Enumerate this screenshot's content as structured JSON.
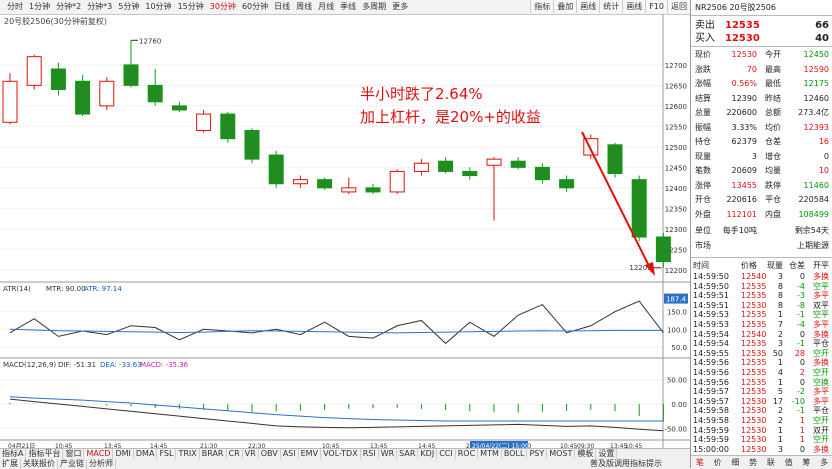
{
  "toolbar": {
    "periods": [
      "分时",
      "1分钟",
      "分钟*2",
      "分钟*3",
      "5分钟",
      "10分钟",
      "15分钟",
      "30分钟",
      "60分钟",
      "日线",
      "周线",
      "月线",
      "季线",
      "多周期",
      "更多"
    ],
    "active_period": 7,
    "tools": [
      "指标",
      "叠加",
      "画线",
      "统计",
      "画线",
      "F10",
      "返回"
    ]
  },
  "contract_title": "20号胶2506(30分钟前复权)",
  "annotation": {
    "line1": "半小时跌了2.64%",
    "line2": "加上杠杆，是20%+的收益"
  },
  "price_labels": {
    "high": "12760",
    "low": "12205"
  },
  "price_axis": [
    "12700",
    "12650",
    "12600",
    "12550",
    "12500",
    "12450",
    "12400",
    "12350",
    "12300",
    "12250",
    "12200"
  ],
  "atr": {
    "label_name": "ATR(14)",
    "mtr": "MTR: 90.00",
    "atr": "ATR: 97.14",
    "axis": [
      "150.0",
      "100.0",
      "50.0"
    ],
    "current": "187.4"
  },
  "macd": {
    "label_name": "MACD(12,26,9)",
    "dif": "DIF: -51.31",
    "dea": "DEA: -33.63",
    "macd": "MACD: -35.36",
    "axis": [
      "50.00",
      "0.00",
      "-50.00"
    ]
  },
  "time_axis": [
    "04月21日",
    "10:45",
    "13:45",
    "14:45",
    "21:30",
    "22:30",
    "10:45",
    "13:45",
    "14:45",
    "21:30",
    "22:30",
    "10:45",
    "13:45",
    "25/04/22(二) 15:00",
    "09:30",
    "10:45"
  ],
  "indicator_tabs": [
    "指标A",
    "指标平台",
    "窗口",
    "MACD",
    "DMI",
    "DMA",
    "FSL",
    "TRIX",
    "BRAR",
    "CR",
    "VR",
    "OBV",
    "ASI",
    "EMV",
    "VOL-TDX",
    "RSI",
    "WR",
    "SAR",
    "KDJ",
    "CCI",
    "ROC",
    "MTM",
    "BOLL",
    "PSY",
    "MOST",
    "模板",
    "设置"
  ],
  "indicator_tabs2": [
    "扩展",
    "关联报价",
    "产业链",
    "分析师"
  ],
  "right": {
    "symbol": "NR2506 20号胶2506",
    "sell_label": "卖出",
    "sell_price": "12535",
    "sell_vol": "66",
    "buy_label": "买入",
    "buy_price": "12530",
    "buy_vol": "40",
    "rows": [
      {
        "k1": "现价",
        "v1": "12530",
        "k2": "今开",
        "v2": "12450"
      },
      {
        "k1": "涨跌",
        "v1": "70",
        "k2": "最高",
        "v2": "12590"
      },
      {
        "k1": "涨幅",
        "v1": "0.56%",
        "k2": "最低",
        "v2": "12175"
      },
      {
        "k1": "结算",
        "v1": "12390",
        "k2": "昨结",
        "v2": "12460"
      },
      {
        "k1": "总量",
        "v1": "220600",
        "k2": "总额",
        "v2": "273.4亿"
      },
      {
        "k1": "振幅",
        "v1": "3.33%",
        "k2": "均价",
        "v2": "12393"
      },
      {
        "k1": "持仓",
        "v1": "62379",
        "k2": "仓差",
        "v2": "16"
      },
      {
        "k1": "现量",
        "v1": "3",
        "k2": "增仓",
        "v2": "0"
      },
      {
        "k1": "笔数",
        "v1": "20609",
        "k2": "均量",
        "v2": "10"
      },
      {
        "k1": "涨停",
        "v1": "13455",
        "k2": "跌停",
        "v2": "11460"
      },
      {
        "k1": "开仓",
        "v1": "220616",
        "k2": "平仓",
        "v2": "220584"
      },
      {
        "k1": "外盘",
        "v1": "112101",
        "k2": "内盘",
        "v2": "108499"
      },
      {
        "k1": "单位",
        "v1": "每手10吨",
        "k2": "",
        "v2": "剩余54天"
      },
      {
        "k1": "市场",
        "v1": "",
        "k2": "",
        "v2": "上期能源"
      }
    ],
    "tick_header": [
      "时间",
      "价格",
      "现量",
      "仓差",
      "开平"
    ],
    "ticks": [
      [
        "14:59:50",
        "12540",
        "3",
        "0",
        "多换"
      ],
      [
        "14:59:50",
        "12535",
        "8",
        "-4",
        "空平"
      ],
      [
        "14:59:51",
        "12535",
        "8",
        "-3",
        "多平"
      ],
      [
        "14:59:51",
        "12530",
        "8",
        "-8",
        "双平"
      ],
      [
        "14:59:53",
        "12535",
        "1",
        "-1",
        "空平"
      ],
      [
        "14:59:53",
        "12535",
        "7",
        "-4",
        "多平"
      ],
      [
        "14:59:54",
        "12540",
        "2",
        "0",
        "多换"
      ],
      [
        "14:59:54",
        "12535",
        "3",
        "-1",
        "平仓"
      ],
      [
        "14:59:55",
        "12535",
        "50",
        "28",
        "空开"
      ],
      [
        "14:59:56",
        "12535",
        "1",
        "0",
        "多换"
      ],
      [
        "14:59:56",
        "12535",
        "4",
        "2",
        "空开"
      ],
      [
        "14:59:56",
        "12535",
        "1",
        "0",
        "空换"
      ],
      [
        "14:59:57",
        "12535",
        "5",
        "-2",
        "多平"
      ],
      [
        "14:59:57",
        "12530",
        "17",
        "-10",
        "多平"
      ],
      [
        "14:59:58",
        "12530",
        "2",
        "-1",
        "平仓"
      ],
      [
        "14:59:58",
        "12530",
        "2",
        "1",
        "空开"
      ],
      [
        "14:59:59",
        "12530",
        "1",
        "1",
        "双开"
      ],
      [
        "14:59:59",
        "12530",
        "1",
        "1",
        "空开"
      ],
      [
        "15:00:00",
        "12530",
        "3",
        "0",
        "多换"
      ]
    ],
    "bottom_tabs": [
      "笔",
      "价",
      "细",
      "势",
      "联",
      "值",
      "筹",
      "多"
    ]
  },
  "bottom_status": "普及版调用指标提示",
  "chart_data": {
    "type": "candlestick",
    "ylim": [
      12180,
      12790
    ],
    "candles": [
      {
        "o": 12560,
        "c": 12660,
        "h": 12680,
        "l": 12555
      },
      {
        "o": 12650,
        "c": 12720,
        "h": 12725,
        "l": 12640
      },
      {
        "o": 12690,
        "c": 12640,
        "h": 12705,
        "l": 12625
      },
      {
        "o": 12660,
        "c": 12580,
        "h": 12675,
        "l": 12575
      },
      {
        "o": 12600,
        "c": 12660,
        "h": 12670,
        "l": 12590
      },
      {
        "o": 12700,
        "c": 12650,
        "h": 12760,
        "l": 12645
      },
      {
        "o": 12650,
        "c": 12610,
        "h": 12690,
        "l": 12600
      },
      {
        "o": 12600,
        "c": 12590,
        "h": 12610,
        "l": 12585
      },
      {
        "o": 12540,
        "c": 12580,
        "h": 12590,
        "l": 12535
      },
      {
        "o": 12580,
        "c": 12520,
        "h": 12585,
        "l": 12510
      },
      {
        "o": 12540,
        "c": 12470,
        "h": 12545,
        "l": 12460
      },
      {
        "o": 12480,
        "c": 12410,
        "h": 12490,
        "l": 12400
      },
      {
        "o": 12410,
        "c": 12420,
        "h": 12430,
        "l": 12400
      },
      {
        "o": 12420,
        "c": 12400,
        "h": 12425,
        "l": 12395
      },
      {
        "o": 12390,
        "c": 12400,
        "h": 12425,
        "l": 12385
      },
      {
        "o": 12400,
        "c": 12390,
        "h": 12410,
        "l": 12385
      },
      {
        "o": 12390,
        "c": 12440,
        "h": 12445,
        "l": 12385
      },
      {
        "o": 12440,
        "c": 12460,
        "h": 12470,
        "l": 12430
      },
      {
        "o": 12465,
        "c": 12440,
        "h": 12475,
        "l": 12435
      },
      {
        "o": 12440,
        "c": 12430,
        "h": 12450,
        "l": 12420
      },
      {
        "o": 12455,
        "c": 12470,
        "h": 12475,
        "l": 12320
      },
      {
        "o": 12465,
        "c": 12450,
        "h": 12475,
        "l": 12445
      },
      {
        "o": 12450,
        "c": 12420,
        "h": 12460,
        "l": 12410
      },
      {
        "o": 12420,
        "c": 12400,
        "h": 12430,
        "l": 12390
      },
      {
        "o": 12480,
        "c": 12520,
        "h": 12530,
        "l": 12470
      },
      {
        "o": 12505,
        "c": 12435,
        "h": 12510,
        "l": 12425
      },
      {
        "o": 12420,
        "c": 12280,
        "h": 12430,
        "l": 12270
      },
      {
        "o": 12280,
        "c": 12220,
        "h": 12290,
        "l": 12205
      }
    ],
    "atr_values": [
      100,
      98,
      96,
      95,
      94,
      93,
      92,
      91,
      92,
      94,
      96,
      95,
      94,
      93,
      92,
      91,
      90,
      91,
      92,
      93,
      94,
      95,
      96,
      95,
      96,
      97,
      97,
      97
    ],
    "mtr_values": [
      90,
      130,
      80,
      95,
      85,
      110,
      105,
      70,
      100,
      95,
      90,
      100,
      85,
      120,
      80,
      75,
      110,
      125,
      60,
      120,
      80,
      140,
      170,
      90,
      110,
      150,
      180,
      90
    ],
    "macd_bars": [
      2,
      1,
      0,
      -1,
      -3,
      -5,
      -8,
      -10,
      -12,
      -14,
      -16,
      -15,
      -14,
      -12,
      -10,
      -9,
      -8,
      -10,
      -12,
      -15,
      -17,
      -18,
      -16,
      -14,
      -12,
      -15,
      -25,
      -36
    ],
    "dif_values": [
      10,
      5,
      0,
      -5,
      -10,
      -15,
      -20,
      -25,
      -30,
      -35,
      -40,
      -45,
      -47,
      -48,
      -49,
      -48,
      -47,
      -46,
      -45,
      -44,
      -43,
      -42,
      -44,
      -46,
      -45,
      -48,
      -52,
      -55
    ],
    "dea_values": [
      15,
      12,
      10,
      8,
      5,
      2,
      -2,
      -6,
      -10,
      -14,
      -18,
      -22,
      -25,
      -28,
      -30,
      -32,
      -33,
      -34,
      -35,
      -35,
      -35,
      -35,
      -35,
      -35,
      -35,
      -35,
      -35,
      -35
    ]
  }
}
